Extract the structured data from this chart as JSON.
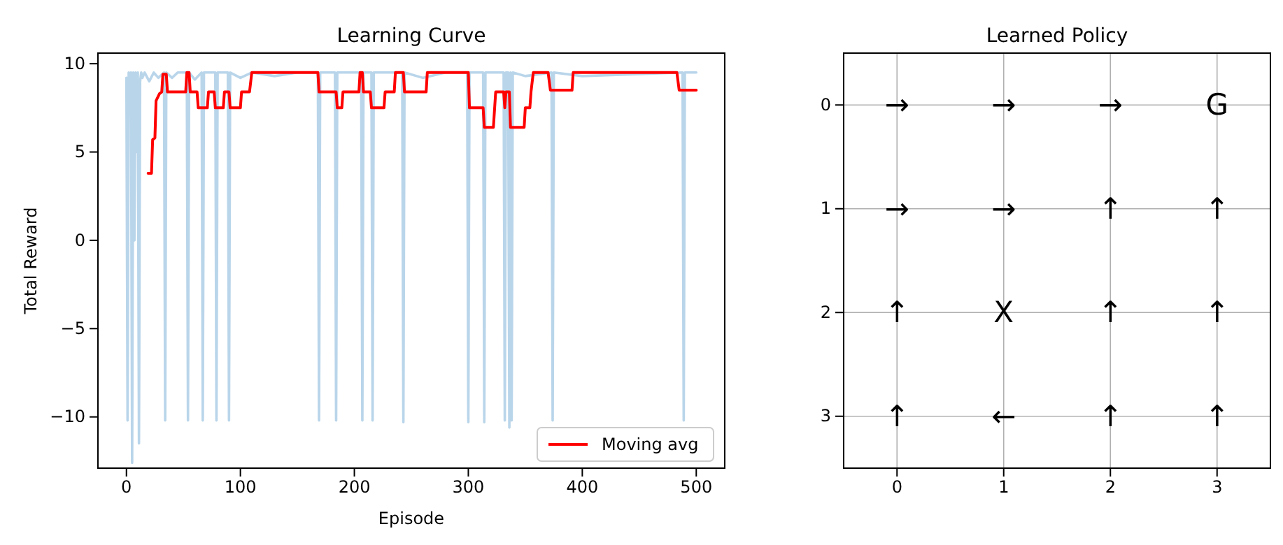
{
  "chart_data": [
    {
      "type": "line",
      "title": "Learning Curve",
      "xlabel": "Episode",
      "ylabel": "Total Reward",
      "xlim": [
        -25,
        525
      ],
      "ylim": [
        -12.9,
        10.6
      ],
      "xticks": [
        0,
        100,
        200,
        300,
        400,
        500
      ],
      "yticks": [
        -10,
        -5,
        0,
        5,
        10
      ],
      "legend": "bottom right",
      "series": [
        {
          "color": "#b9d5ea",
          "x": [
            0,
            1,
            2,
            3,
            4,
            5,
            6,
            7,
            8,
            9,
            10,
            11,
            12,
            13,
            14,
            16,
            20,
            24,
            28,
            33,
            34,
            35,
            40,
            45,
            53,
            54,
            55,
            60,
            66,
            67,
            68,
            78,
            79,
            80,
            89,
            90,
            91,
            100,
            110,
            130,
            150,
            168,
            169,
            170,
            183,
            184,
            185,
            206,
            207,
            208,
            215,
            216,
            217,
            242,
            243,
            244,
            260,
            280,
            299,
            300,
            301,
            313,
            314,
            315,
            331,
            332,
            333,
            335,
            336,
            337,
            338,
            339,
            350,
            373,
            374,
            375,
            400,
            450,
            488,
            489,
            490,
            500
          ],
          "values": [
            9.2,
            -10.2,
            9.5,
            9.3,
            9.5,
            -12.6,
            9.5,
            0,
            9.5,
            5,
            9.5,
            -11.5,
            9.0,
            9.5,
            9.2,
            9.5,
            9.0,
            9.5,
            9.2,
            9.5,
            -10.2,
            9.5,
            9.2,
            9.5,
            9.5,
            -10.2,
            9.5,
            9.1,
            9.5,
            -10.2,
            9.5,
            9.5,
            -10.2,
            9.5,
            9.5,
            -10.2,
            9.5,
            9.2,
            9.5,
            9.3,
            9.5,
            9.5,
            -10.2,
            9.5,
            9.5,
            -10.2,
            9.5,
            9.5,
            -10.2,
            9.5,
            9.5,
            -10.2,
            9.5,
            9.5,
            -10.3,
            9.5,
            9.2,
            9.5,
            9.5,
            -10.3,
            9.5,
            9.5,
            -10.3,
            9.5,
            9.5,
            -10.2,
            9.5,
            9.5,
            -10.6,
            9.5,
            -10.2,
            9.5,
            9.3,
            9.5,
            -10.2,
            9.5,
            9.3,
            null,
            9.5,
            -10.2,
            9.5,
            9.5
          ]
        },
        {
          "name": "Moving avg",
          "color": "#ff0000",
          "x": [
            19,
            22,
            23,
            25,
            26,
            29,
            31,
            32,
            35,
            36,
            52,
            53,
            55,
            56,
            62,
            63,
            71,
            72,
            77,
            78,
            85,
            86,
            90,
            91,
            100,
            101,
            108,
            110,
            168,
            169,
            184,
            185,
            189,
            190,
            204,
            205,
            207,
            208,
            214,
            215,
            226,
            227,
            235,
            236,
            243,
            244,
            263,
            264,
            300,
            301,
            313,
            314,
            322,
            324,
            331,
            332,
            333,
            336,
            337,
            349,
            350,
            354,
            355,
            357,
            370,
            372,
            391,
            392,
            483,
            485,
            500
          ],
          "values": [
            3.8,
            3.8,
            5.7,
            5.8,
            7.9,
            8.3,
            8.4,
            9.4,
            9.4,
            8.4,
            8.4,
            9.5,
            9.5,
            8.4,
            8.4,
            7.5,
            7.5,
            8.4,
            8.4,
            7.5,
            7.5,
            8.4,
            8.4,
            7.5,
            7.5,
            8.4,
            8.4,
            9.5,
            9.5,
            8.4,
            8.4,
            7.5,
            7.5,
            8.4,
            8.4,
            9.5,
            9.5,
            8.4,
            8.4,
            7.5,
            7.5,
            8.4,
            8.4,
            9.5,
            9.5,
            8.4,
            8.4,
            9.5,
            9.5,
            7.5,
            7.5,
            6.4,
            6.4,
            8.4,
            8.4,
            7.5,
            8.4,
            8.4,
            6.4,
            6.4,
            7.5,
            7.5,
            8.4,
            9.5,
            9.5,
            8.5,
            8.5,
            9.5,
            9.5,
            8.5,
            8.5
          ]
        }
      ]
    },
    {
      "type": "heatmap",
      "title": "Learned Policy",
      "categories": [
        "0",
        "1",
        "2",
        "3"
      ],
      "y_categories": [
        "0",
        "1",
        "2",
        "3"
      ],
      "grid": true,
      "cells": [
        [
          null,
          null,
          null,
          null
        ],
        [
          null,
          null,
          null,
          null
        ],
        [
          null,
          null,
          null,
          null
        ],
        [
          null,
          null,
          null,
          null
        ]
      ],
      "cell_labels": [
        [
          "→",
          "→",
          "→",
          "G"
        ],
        [
          "→",
          "→",
          "↑",
          "↑"
        ],
        [
          "↑",
          "X",
          "↑",
          "↑"
        ],
        [
          "↑",
          "←",
          "↑",
          "↑"
        ]
      ]
    }
  ]
}
